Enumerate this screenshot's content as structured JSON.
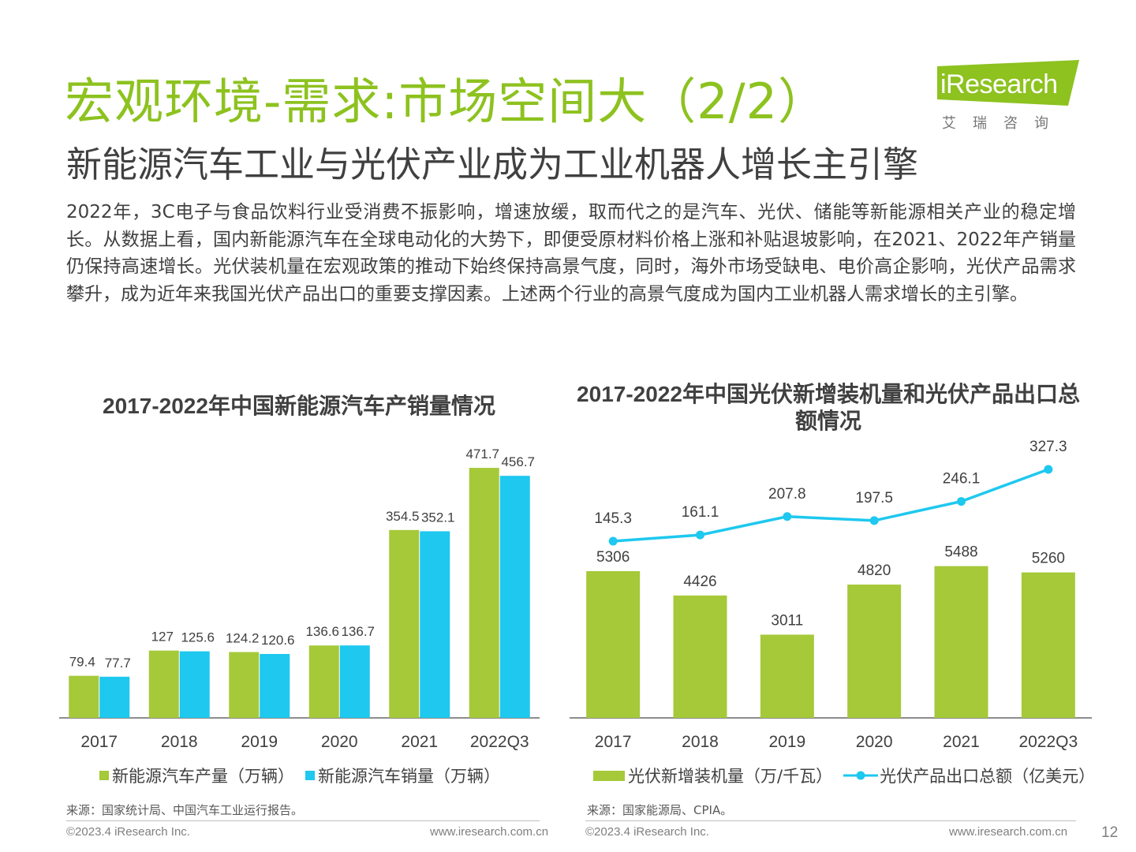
{
  "title": "宏观环境-需求:市场空间大（2/2）",
  "subtitle": "新能源汽车工业与光伏产业成为工业机器人增长主引擎",
  "logo": {
    "text": "iResearch",
    "sub": "艾瑞咨询"
  },
  "body": "2022年，3C电子与食品饮料行业受消费不振影响，增速放缓，取而代之的是汽车、光伏、储能等新能源相关产业的稳定增长。从数据上看，国内新能源汽车在全球电动化的大势下，即便受原材料价格上涨和补贴退坡影响，在2021、2022年产销量仍保持高速增长。光伏装机量在宏观政策的推动下始终保持高景气度，同时，海外市场受缺电、电价高企影响，光伏产品需求攀升，成为近年来我国光伏产品出口的重要支撑因素。上述两个行业的高景气度成为国内工业机器人需求增长的主引擎。",
  "colors": {
    "green": "#a5c939",
    "cyan": "#1ec8ef",
    "title_green": "#8dc21f"
  },
  "chart_data": [
    {
      "type": "bar",
      "title": "2017-2022年中国新能源汽车产销量情况",
      "categories": [
        "2017",
        "2018",
        "2019",
        "2020",
        "2021",
        "2022Q3"
      ],
      "series": [
        {
          "name": "新能源汽车产量（万辆）",
          "values": [
            79.4,
            127,
            124.2,
            136.6,
            354.5,
            471.7
          ],
          "labels": [
            "79.4",
            "127",
            "124.2",
            "136.6",
            "354.5",
            "471.7"
          ]
        },
        {
          "name": "新能源汽车销量（万辆）",
          "values": [
            77.7,
            125.6,
            120.6,
            136.7,
            352.1,
            456.7
          ],
          "labels": [
            "77.7",
            "125.6",
            "120.6",
            "136.7",
            "352.1",
            "456.7"
          ]
        }
      ],
      "ylim": [
        0,
        500
      ],
      "legend": "bottom",
      "source": "来源：国家统计局、中国汽车工业运行报告。"
    },
    {
      "type": "bar",
      "title": "2017-2022年中国光伏新增装机量和光伏产品出口总额情况",
      "categories": [
        "2017",
        "2018",
        "2019",
        "2020",
        "2021",
        "2022Q3"
      ],
      "series": [
        {
          "name": "光伏新增装机量（万/千瓦）",
          "type": "bar",
          "values": [
            5306,
            4426,
            3011,
            4820,
            5488,
            5260
          ],
          "labels": [
            "5306",
            "4426",
            "3011",
            "4820",
            "5488",
            "5260"
          ]
        },
        {
          "name": "光伏产品出口总额（亿美元）",
          "type": "line",
          "values": [
            145.3,
            161.1,
            207.8,
            197.5,
            246.1,
            327.3
          ],
          "labels": [
            "145.3",
            "161.1",
            "207.8",
            "197.5",
            "246.1",
            "327.3"
          ]
        }
      ],
      "ylim_bar": [
        0,
        7000
      ],
      "ylim_line": [
        0,
        350
      ],
      "legend": "bottom",
      "source": "来源：国家能源局、CPIA。"
    }
  ],
  "footer": {
    "left_copyright": "©2023.4 iResearch Inc.",
    "left_url": "www.iresearch.com.cn",
    "right_copyright": "©2023.4 iResearch Inc.",
    "right_url": "www.iresearch.com.cn",
    "page": "12"
  }
}
